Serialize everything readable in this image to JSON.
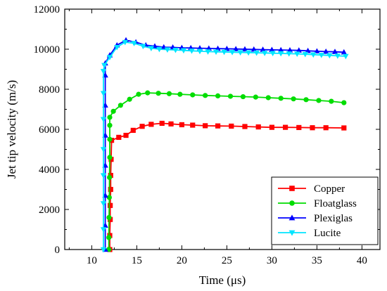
{
  "chart_data": {
    "type": "line",
    "xlabel": "Time (μs)",
    "ylabel": "Jet tip velocity  (m/s)",
    "xlim": [
      7,
      42
    ],
    "ylim": [
      0,
      12000
    ],
    "xticks": [
      10,
      15,
      20,
      25,
      30,
      35,
      40
    ],
    "yticks": [
      0,
      2000,
      4000,
      6000,
      8000,
      10000,
      12000
    ],
    "grid": false,
    "legend_position": "bottom-right",
    "series": [
      {
        "name": "Copper",
        "color": "#ff0000",
        "marker": "square",
        "points": [
          [
            12.0,
            0
          ],
          [
            12.0,
            700
          ],
          [
            12.05,
            1500
          ],
          [
            12.05,
            2200
          ],
          [
            12.1,
            3000
          ],
          [
            12.1,
            3700
          ],
          [
            12.15,
            4500
          ],
          [
            12.2,
            5450
          ],
          [
            13.0,
            5600
          ],
          [
            13.8,
            5700
          ],
          [
            14.6,
            5950
          ],
          [
            15.6,
            6150
          ],
          [
            16.6,
            6250
          ],
          [
            17.8,
            6300
          ],
          [
            18.8,
            6270
          ],
          [
            20.0,
            6230
          ],
          [
            21.2,
            6210
          ],
          [
            22.6,
            6180
          ],
          [
            24.0,
            6170
          ],
          [
            25.5,
            6160
          ],
          [
            27.0,
            6140
          ],
          [
            28.5,
            6120
          ],
          [
            30.0,
            6100
          ],
          [
            31.5,
            6100
          ],
          [
            33.0,
            6090
          ],
          [
            34.5,
            6080
          ],
          [
            36.0,
            6080
          ],
          [
            38.0,
            6070
          ]
        ]
      },
      {
        "name": "Floatglass",
        "color": "#00dd00",
        "marker": "circle",
        "points": [
          [
            11.9,
            0
          ],
          [
            11.9,
            600
          ],
          [
            11.92,
            1600
          ],
          [
            11.95,
            2600
          ],
          [
            11.97,
            3600
          ],
          [
            12.0,
            4600
          ],
          [
            12.0,
            5500
          ],
          [
            12.0,
            6200
          ],
          [
            12.0,
            6600
          ],
          [
            12.4,
            6900
          ],
          [
            13.2,
            7200
          ],
          [
            14.2,
            7500
          ],
          [
            15.2,
            7750
          ],
          [
            16.2,
            7820
          ],
          [
            17.4,
            7800
          ],
          [
            18.6,
            7780
          ],
          [
            19.8,
            7750
          ],
          [
            21.2,
            7720
          ],
          [
            22.6,
            7690
          ],
          [
            24.0,
            7670
          ],
          [
            25.4,
            7650
          ],
          [
            26.8,
            7630
          ],
          [
            28.2,
            7610
          ],
          [
            29.6,
            7580
          ],
          [
            31.0,
            7550
          ],
          [
            32.4,
            7520
          ],
          [
            33.8,
            7480
          ],
          [
            35.2,
            7440
          ],
          [
            36.6,
            7400
          ],
          [
            38.0,
            7330
          ]
        ]
      },
      {
        "name": "Plexiglas",
        "color": "#0000ff",
        "marker": "triangle-up",
        "points": [
          [
            11.5,
            0
          ],
          [
            11.5,
            1200
          ],
          [
            11.5,
            2700
          ],
          [
            11.5,
            4200
          ],
          [
            11.5,
            5700
          ],
          [
            11.5,
            7200
          ],
          [
            11.5,
            8700
          ],
          [
            11.5,
            9300
          ],
          [
            12.0,
            9700
          ],
          [
            12.8,
            10200
          ],
          [
            13.8,
            10450
          ],
          [
            14.9,
            10350
          ],
          [
            16.0,
            10200
          ],
          [
            17.0,
            10150
          ],
          [
            18.0,
            10100
          ],
          [
            19.0,
            10090
          ],
          [
            20.0,
            10070
          ],
          [
            21.0,
            10060
          ],
          [
            22.0,
            10050
          ],
          [
            23.0,
            10040
          ],
          [
            24.0,
            10030
          ],
          [
            25.0,
            10020
          ],
          [
            26.0,
            10010
          ],
          [
            27.0,
            10000
          ],
          [
            28.0,
            9990
          ],
          [
            29.0,
            9980
          ],
          [
            30.0,
            9970
          ],
          [
            31.0,
            9960
          ],
          [
            32.0,
            9950
          ],
          [
            33.0,
            9940
          ],
          [
            34.0,
            9920
          ],
          [
            35.0,
            9900
          ],
          [
            36.0,
            9880
          ],
          [
            37.0,
            9870
          ],
          [
            38.0,
            9850
          ]
        ]
      },
      {
        "name": "Lucite",
        "color": "#00e5ff",
        "marker": "triangle-down",
        "points": [
          [
            11.3,
            0
          ],
          [
            11.3,
            1000
          ],
          [
            11.3,
            2300
          ],
          [
            11.3,
            3700
          ],
          [
            11.3,
            5000
          ],
          [
            11.3,
            6500
          ],
          [
            11.3,
            7800
          ],
          [
            11.3,
            8900
          ],
          [
            11.4,
            9200
          ],
          [
            12.0,
            9600
          ],
          [
            12.8,
            10100
          ],
          [
            13.7,
            10350
          ],
          [
            14.7,
            10300
          ],
          [
            15.7,
            10150
          ],
          [
            16.6,
            10050
          ],
          [
            17.5,
            10000
          ],
          [
            18.4,
            9980
          ],
          [
            19.3,
            9960
          ],
          [
            20.2,
            9940
          ],
          [
            21.1,
            9920
          ],
          [
            22.0,
            9900
          ],
          [
            22.9,
            9880
          ],
          [
            23.8,
            9870
          ],
          [
            24.7,
            9860
          ],
          [
            25.6,
            9850
          ],
          [
            26.5,
            9840
          ],
          [
            27.4,
            9830
          ],
          [
            28.3,
            9820
          ],
          [
            29.2,
            9810
          ],
          [
            30.1,
            9800
          ],
          [
            31.0,
            9790
          ],
          [
            31.9,
            9780
          ],
          [
            32.8,
            9770
          ],
          [
            33.7,
            9750
          ],
          [
            34.6,
            9730
          ],
          [
            35.5,
            9710
          ],
          [
            36.4,
            9690
          ],
          [
            37.3,
            9670
          ],
          [
            38.2,
            9650
          ]
        ]
      }
    ]
  }
}
